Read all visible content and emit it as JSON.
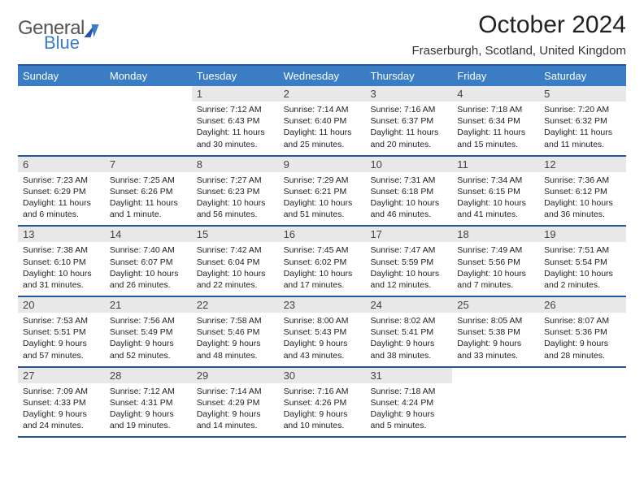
{
  "logo": {
    "general": "General",
    "blue": "Blue"
  },
  "header": {
    "month_title": "October 2024",
    "location": "Fraserburgh, Scotland, United Kingdom"
  },
  "colors": {
    "header_bg": "#3b7dc4",
    "border": "#2256a0",
    "daynum_bg": "#e8e8e8",
    "logo_general": "#555555",
    "logo_blue": "#3b7dc4",
    "background": "#ffffff",
    "text": "#222222",
    "header_text": "#ffffff"
  },
  "typography": {
    "month_title_fontsize": 30,
    "location_fontsize": 15,
    "day_header_fontsize": 13,
    "cell_num_fontsize": 13,
    "cell_body_fontsize": 10.5,
    "logo_fontsize": 24
  },
  "day_names": [
    "Sunday",
    "Monday",
    "Tuesday",
    "Wednesday",
    "Thursday",
    "Friday",
    "Saturday"
  ],
  "weeks": [
    [
      {
        "empty": true
      },
      {
        "empty": true
      },
      {
        "num": "1",
        "sunrise": "Sunrise: 7:12 AM",
        "sunset": "Sunset: 6:43 PM",
        "daylight": "Daylight: 11 hours and 30 minutes."
      },
      {
        "num": "2",
        "sunrise": "Sunrise: 7:14 AM",
        "sunset": "Sunset: 6:40 PM",
        "daylight": "Daylight: 11 hours and 25 minutes."
      },
      {
        "num": "3",
        "sunrise": "Sunrise: 7:16 AM",
        "sunset": "Sunset: 6:37 PM",
        "daylight": "Daylight: 11 hours and 20 minutes."
      },
      {
        "num": "4",
        "sunrise": "Sunrise: 7:18 AM",
        "sunset": "Sunset: 6:34 PM",
        "daylight": "Daylight: 11 hours and 15 minutes."
      },
      {
        "num": "5",
        "sunrise": "Sunrise: 7:20 AM",
        "sunset": "Sunset: 6:32 PM",
        "daylight": "Daylight: 11 hours and 11 minutes."
      }
    ],
    [
      {
        "num": "6",
        "sunrise": "Sunrise: 7:23 AM",
        "sunset": "Sunset: 6:29 PM",
        "daylight": "Daylight: 11 hours and 6 minutes."
      },
      {
        "num": "7",
        "sunrise": "Sunrise: 7:25 AM",
        "sunset": "Sunset: 6:26 PM",
        "daylight": "Daylight: 11 hours and 1 minute."
      },
      {
        "num": "8",
        "sunrise": "Sunrise: 7:27 AM",
        "sunset": "Sunset: 6:23 PM",
        "daylight": "Daylight: 10 hours and 56 minutes."
      },
      {
        "num": "9",
        "sunrise": "Sunrise: 7:29 AM",
        "sunset": "Sunset: 6:21 PM",
        "daylight": "Daylight: 10 hours and 51 minutes."
      },
      {
        "num": "10",
        "sunrise": "Sunrise: 7:31 AM",
        "sunset": "Sunset: 6:18 PM",
        "daylight": "Daylight: 10 hours and 46 minutes."
      },
      {
        "num": "11",
        "sunrise": "Sunrise: 7:34 AM",
        "sunset": "Sunset: 6:15 PM",
        "daylight": "Daylight: 10 hours and 41 minutes."
      },
      {
        "num": "12",
        "sunrise": "Sunrise: 7:36 AM",
        "sunset": "Sunset: 6:12 PM",
        "daylight": "Daylight: 10 hours and 36 minutes."
      }
    ],
    [
      {
        "num": "13",
        "sunrise": "Sunrise: 7:38 AM",
        "sunset": "Sunset: 6:10 PM",
        "daylight": "Daylight: 10 hours and 31 minutes."
      },
      {
        "num": "14",
        "sunrise": "Sunrise: 7:40 AM",
        "sunset": "Sunset: 6:07 PM",
        "daylight": "Daylight: 10 hours and 26 minutes."
      },
      {
        "num": "15",
        "sunrise": "Sunrise: 7:42 AM",
        "sunset": "Sunset: 6:04 PM",
        "daylight": "Daylight: 10 hours and 22 minutes."
      },
      {
        "num": "16",
        "sunrise": "Sunrise: 7:45 AM",
        "sunset": "Sunset: 6:02 PM",
        "daylight": "Daylight: 10 hours and 17 minutes."
      },
      {
        "num": "17",
        "sunrise": "Sunrise: 7:47 AM",
        "sunset": "Sunset: 5:59 PM",
        "daylight": "Daylight: 10 hours and 12 minutes."
      },
      {
        "num": "18",
        "sunrise": "Sunrise: 7:49 AM",
        "sunset": "Sunset: 5:56 PM",
        "daylight": "Daylight: 10 hours and 7 minutes."
      },
      {
        "num": "19",
        "sunrise": "Sunrise: 7:51 AM",
        "sunset": "Sunset: 5:54 PM",
        "daylight": "Daylight: 10 hours and 2 minutes."
      }
    ],
    [
      {
        "num": "20",
        "sunrise": "Sunrise: 7:53 AM",
        "sunset": "Sunset: 5:51 PM",
        "daylight": "Daylight: 9 hours and 57 minutes."
      },
      {
        "num": "21",
        "sunrise": "Sunrise: 7:56 AM",
        "sunset": "Sunset: 5:49 PM",
        "daylight": "Daylight: 9 hours and 52 minutes."
      },
      {
        "num": "22",
        "sunrise": "Sunrise: 7:58 AM",
        "sunset": "Sunset: 5:46 PM",
        "daylight": "Daylight: 9 hours and 48 minutes."
      },
      {
        "num": "23",
        "sunrise": "Sunrise: 8:00 AM",
        "sunset": "Sunset: 5:43 PM",
        "daylight": "Daylight: 9 hours and 43 minutes."
      },
      {
        "num": "24",
        "sunrise": "Sunrise: 8:02 AM",
        "sunset": "Sunset: 5:41 PM",
        "daylight": "Daylight: 9 hours and 38 minutes."
      },
      {
        "num": "25",
        "sunrise": "Sunrise: 8:05 AM",
        "sunset": "Sunset: 5:38 PM",
        "daylight": "Daylight: 9 hours and 33 minutes."
      },
      {
        "num": "26",
        "sunrise": "Sunrise: 8:07 AM",
        "sunset": "Sunset: 5:36 PM",
        "daylight": "Daylight: 9 hours and 28 minutes."
      }
    ],
    [
      {
        "num": "27",
        "sunrise": "Sunrise: 7:09 AM",
        "sunset": "Sunset: 4:33 PM",
        "daylight": "Daylight: 9 hours and 24 minutes."
      },
      {
        "num": "28",
        "sunrise": "Sunrise: 7:12 AM",
        "sunset": "Sunset: 4:31 PM",
        "daylight": "Daylight: 9 hours and 19 minutes."
      },
      {
        "num": "29",
        "sunrise": "Sunrise: 7:14 AM",
        "sunset": "Sunset: 4:29 PM",
        "daylight": "Daylight: 9 hours and 14 minutes."
      },
      {
        "num": "30",
        "sunrise": "Sunrise: 7:16 AM",
        "sunset": "Sunset: 4:26 PM",
        "daylight": "Daylight: 9 hours and 10 minutes."
      },
      {
        "num": "31",
        "sunrise": "Sunrise: 7:18 AM",
        "sunset": "Sunset: 4:24 PM",
        "daylight": "Daylight: 9 hours and 5 minutes."
      },
      {
        "empty": true
      },
      {
        "empty": true
      }
    ]
  ]
}
